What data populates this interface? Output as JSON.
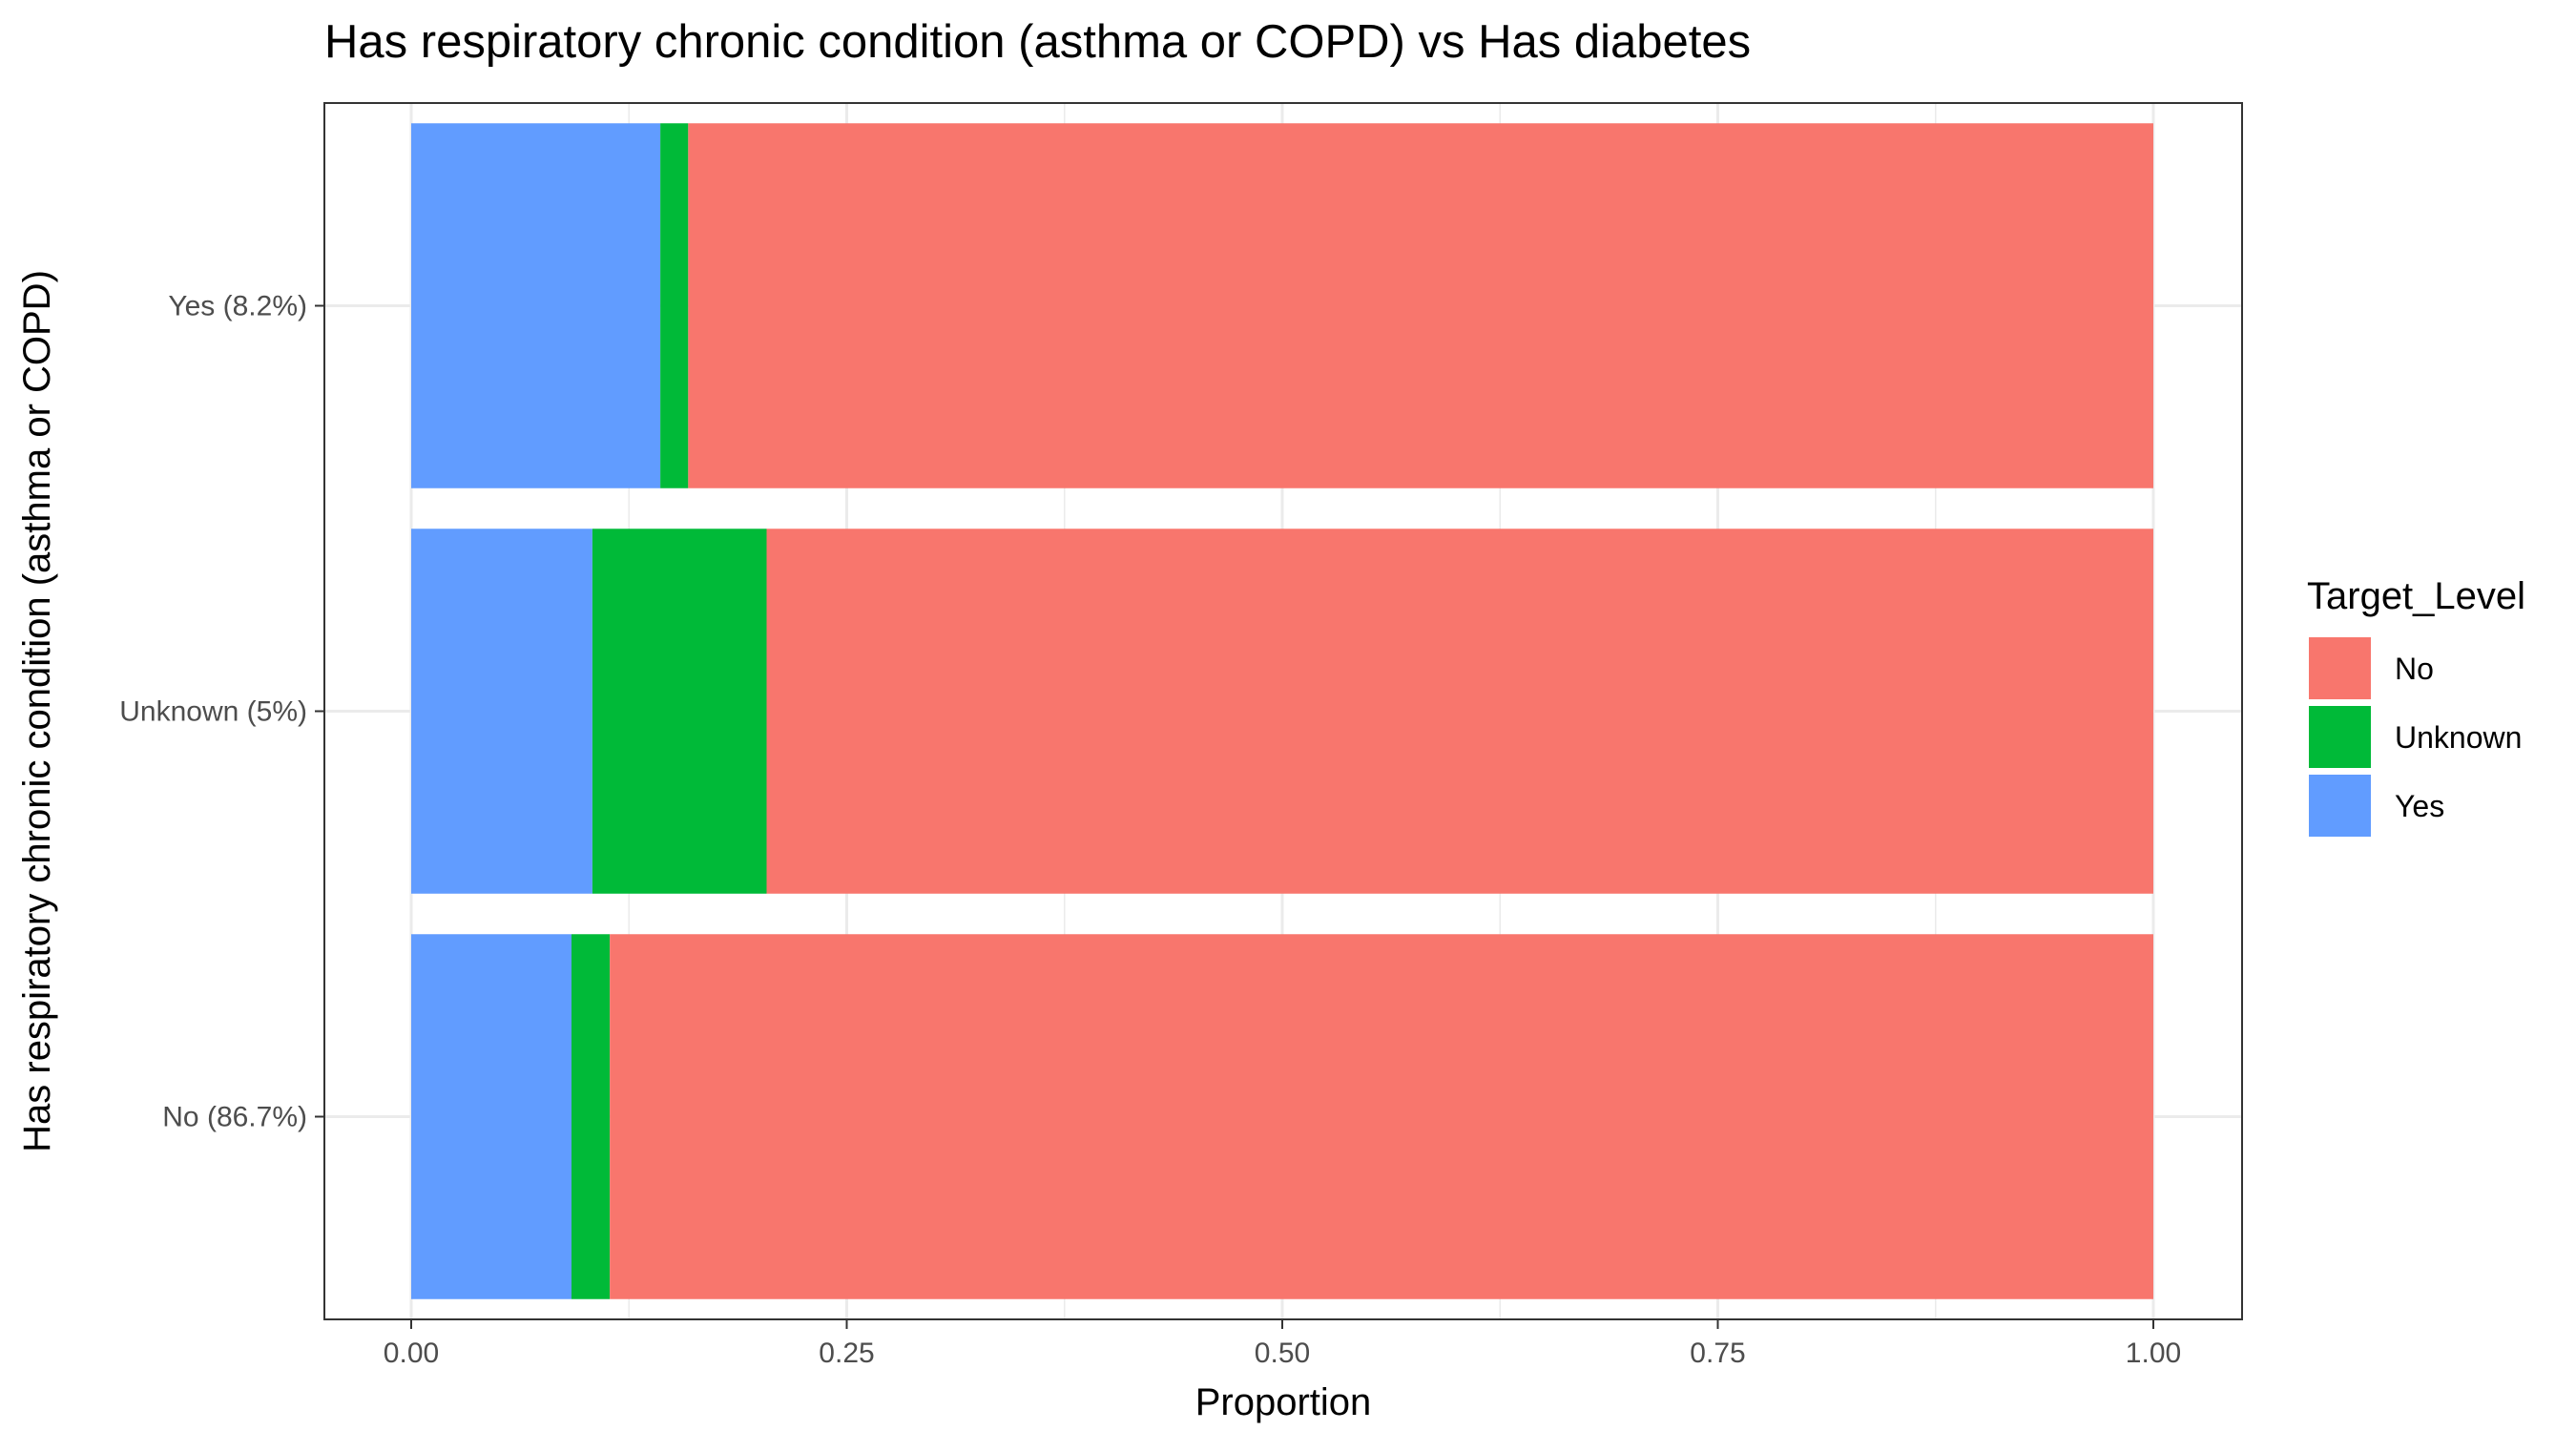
{
  "chart_data": {
    "type": "bar",
    "orientation": "horizontal",
    "stacked": true,
    "title": "Has respiratory chronic condition (asthma or COPD) vs Has diabetes",
    "xlabel": "Proportion",
    "ylabel": "Has respiratory chronic condition (asthma or COPD)",
    "xlim": [
      0,
      1
    ],
    "x_ticks": [
      "0.00",
      "0.25",
      "0.50",
      "0.75",
      "1.00"
    ],
    "x_tick_values": [
      0,
      0.25,
      0.5,
      0.75,
      1
    ],
    "categories": [
      "Yes (8.2%)",
      "Unknown (5%)",
      "No (86.7%)"
    ],
    "series": [
      {
        "name": "Yes",
        "color": "#619CFF",
        "values": [
          0.143,
          0.104,
          0.092
        ]
      },
      {
        "name": "Unknown",
        "color": "#00BA38",
        "values": [
          0.016,
          0.1,
          0.022
        ]
      },
      {
        "name": "No",
        "color": "#F8766D",
        "values": [
          0.841,
          0.796,
          0.886
        ]
      }
    ],
    "grid": true,
    "legend": {
      "title": "Target_Level",
      "placement": "right",
      "entries": [
        {
          "label": "No",
          "color": "#F8766D"
        },
        {
          "label": "Unknown",
          "color": "#00BA38"
        },
        {
          "label": "Yes",
          "color": "#619CFF"
        }
      ]
    }
  }
}
